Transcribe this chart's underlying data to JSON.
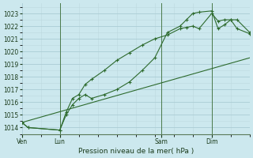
{
  "title": "Pression niveau de la mer( hPa )",
  "bg_color": "#cce8ee",
  "grid_color_major": "#aaccd4",
  "grid_color_minor": "#bcd8de",
  "line_color": "#2d6a2d",
  "vline_color": "#4a7a4a",
  "ylim": [
    1013.5,
    1023.8
  ],
  "yticks": [
    1014,
    1015,
    1016,
    1017,
    1018,
    1019,
    1020,
    1021,
    1022,
    1023
  ],
  "xtick_labels": [
    "Ven",
    "Lun",
    "Sam",
    "Dim"
  ],
  "xtick_positions": [
    0,
    12,
    44,
    60
  ],
  "vlines_x": [
    12,
    44,
    60
  ],
  "xlim": [
    0,
    72
  ],
  "line1_x": [
    0,
    2,
    12,
    14,
    16,
    18,
    20,
    22,
    26,
    30,
    34,
    38,
    42,
    46,
    50,
    52,
    54,
    56,
    60,
    62,
    64,
    66,
    68,
    72
  ],
  "line1_y": [
    1014.4,
    1014.0,
    1013.8,
    1015.2,
    1016.3,
    1016.6,
    1017.4,
    1017.8,
    1018.5,
    1019.3,
    1019.9,
    1020.5,
    1021.0,
    1021.3,
    1021.8,
    1021.9,
    1022.0,
    1021.8,
    1023.0,
    1022.4,
    1022.5,
    1022.5,
    1021.8,
    1021.4
  ],
  "line2_x": [
    0,
    2,
    12,
    14,
    16,
    18,
    20,
    22,
    26,
    30,
    34,
    38,
    42,
    46,
    50,
    52,
    54,
    56,
    60,
    62,
    64,
    66,
    68,
    72
  ],
  "line2_y": [
    1014.4,
    1014.0,
    1013.8,
    1015.0,
    1015.8,
    1016.3,
    1016.6,
    1016.3,
    1016.6,
    1017.0,
    1017.6,
    1018.5,
    1019.5,
    1021.5,
    1022.0,
    1022.5,
    1023.0,
    1023.1,
    1023.2,
    1021.8,
    1022.1,
    1022.5,
    1022.5,
    1021.5
  ],
  "line3_x": [
    0,
    72
  ],
  "line3_y": [
    1014.4,
    1019.5
  ]
}
